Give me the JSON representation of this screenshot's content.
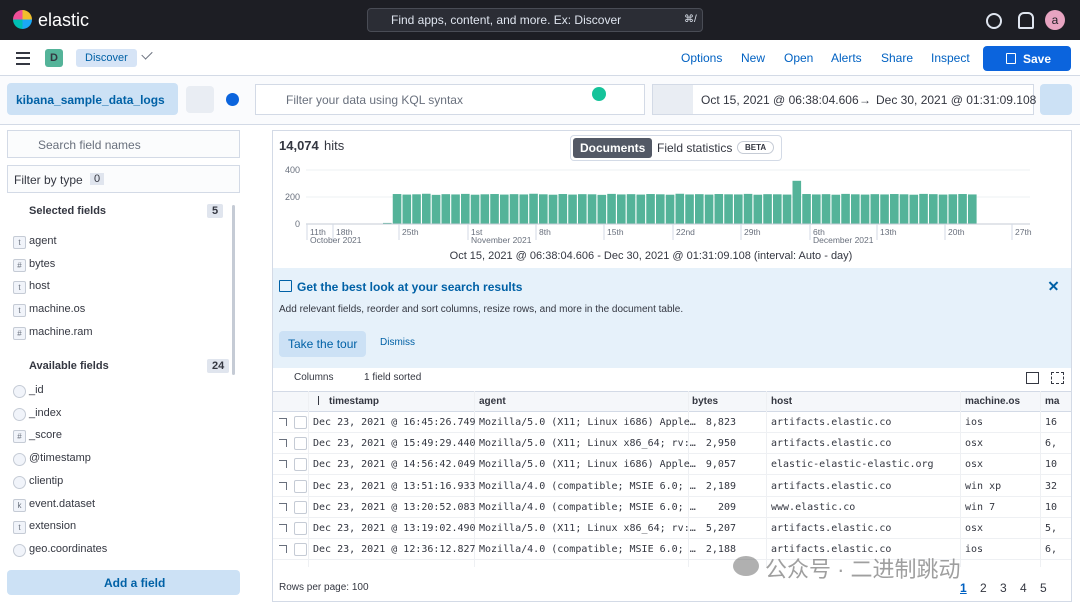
{
  "topbar": {
    "brand": "elastic",
    "search": "Find apps, content, and more. Ex: Discover",
    "shortcut": "⌘/",
    "avatar": "a"
  },
  "nav": {
    "badge": "D",
    "app": "Discover",
    "links": [
      "Options",
      "New",
      "Open",
      "Alerts",
      "Share",
      "Inspect"
    ],
    "save": "Save"
  },
  "query": {
    "data_view": "kibana_sample_data_logs",
    "placeholder": "Filter your data using KQL syntax",
    "date_start": "Oct 15, 2021 @ 06:38:04.606",
    "arrow": "→",
    "date_end": "Dec 30, 2021 @ 01:31:09.108"
  },
  "sidebar": {
    "search": "Search field names",
    "filter": "Filter by type",
    "filter_count": "0",
    "selected_title": "Selected fields",
    "selected_count": "5",
    "selected": [
      {
        "icon": "t",
        "name": "agent"
      },
      {
        "icon": "#",
        "name": "bytes"
      },
      {
        "icon": "t",
        "name": "host"
      },
      {
        "icon": "t",
        "name": "machine.os"
      },
      {
        "icon": "#",
        "name": "machine.ram"
      }
    ],
    "available_title": "Available fields",
    "available_count": "24",
    "available": [
      {
        "name": "_id"
      },
      {
        "name": "_index"
      },
      {
        "icon": "#",
        "name": "_score"
      },
      {
        "name": "@timestamp"
      },
      {
        "name": "clientip"
      },
      {
        "icon": "k",
        "name": "event.dataset"
      },
      {
        "icon": "t",
        "name": "extension"
      },
      {
        "name": "geo.coordinates"
      }
    ],
    "add_field": "Add a field"
  },
  "main": {
    "hits": "14,074",
    "hits_label": "hits",
    "tab_documents": "Documents",
    "tab_stats": "Field statistics",
    "beta": "BETA",
    "caption": "Oct 15, 2021 @ 06:38:04.606 - Dec 30, 2021 @ 01:31:09.108 (interval: Auto - day)",
    "callout": {
      "title": "Get the best look at your search results",
      "text": "Add relevant fields, reorder and sort columns, resize rows, and more in the document table.",
      "tour": "Take the tour",
      "dismiss": "Dismiss"
    },
    "toolbar": {
      "columns": "Columns",
      "sorted": "1 field sorted"
    },
    "table": {
      "columns": [
        "timestamp",
        "agent",
        "bytes",
        "host",
        "machine.os",
        "ma"
      ],
      "rows": [
        [
          "Dec 23, 2021 @ 16:45:26.749",
          "Mozilla/5.0 (X11; Linux i686) Apple…",
          "8,823",
          "artifacts.elastic.co",
          "ios",
          "16"
        ],
        [
          "Dec 23, 2021 @ 15:49:29.440",
          "Mozilla/5.0 (X11; Linux x86_64; rv:…",
          "2,950",
          "artifacts.elastic.co",
          "osx",
          "6,"
        ],
        [
          "Dec 23, 2021 @ 14:56:42.049",
          "Mozilla/5.0 (X11; Linux i686) Apple…",
          "9,057",
          "elastic-elastic-elastic.org",
          "osx",
          "10"
        ],
        [
          "Dec 23, 2021 @ 13:51:16.933",
          "Mozilla/4.0 (compatible; MSIE 6.0; …",
          "2,189",
          "artifacts.elastic.co",
          "win xp",
          "32"
        ],
        [
          "Dec 23, 2021 @ 13:20:52.083",
          "Mozilla/4.0 (compatible; MSIE 6.0; …",
          "209",
          "www.elastic.co",
          "win 7",
          "10"
        ],
        [
          "Dec 23, 2021 @ 13:19:02.490",
          "Mozilla/5.0 (X11; Linux x86_64; rv:…",
          "5,207",
          "artifacts.elastic.co",
          "osx",
          "5,"
        ],
        [
          "Dec 23, 2021 @ 12:36:12.827",
          "Mozilla/4.0 (compatible; MSIE 6.0; …",
          "2,188",
          "artifacts.elastic.co",
          "ios",
          "6,"
        ]
      ]
    },
    "footer": {
      "rows_per_page": "Rows per page: 100",
      "pages": [
        "1",
        "2",
        "3",
        "4",
        "5"
      ]
    }
  },
  "watermark": "公众号 · 二进制跳动",
  "chart_data": {
    "type": "bar",
    "color": "#54b399",
    "ylim": [
      0,
      400
    ],
    "yticks": [
      0,
      200,
      400
    ],
    "x_labels": [
      {
        "day": "11th",
        "month": "October 2021"
      },
      {
        "day": "18th"
      },
      {
        "day": "25th"
      },
      {
        "day": "1st",
        "month": "November 2021"
      },
      {
        "day": "8th"
      },
      {
        "day": "15th"
      },
      {
        "day": "22nd"
      },
      {
        "day": "29th"
      },
      {
        "day": "6th",
        "month": "December 2021"
      },
      {
        "day": "13th"
      },
      {
        "day": "20th"
      },
      {
        "day": "27th"
      }
    ],
    "values": [
      8,
      222,
      218,
      220,
      224,
      216,
      221,
      219,
      223,
      217,
      220,
      222,
      218,
      221,
      219,
      224,
      220,
      217,
      222,
      218,
      221,
      220,
      216,
      223,
      219,
      221,
      218,
      222,
      220,
      217,
      224,
      219,
      221,
      218,
      222,
      220,
      219,
      223,
      217,
      221,
      220,
      218,
      320,
      222,
      219,
      221,
      217,
      223,
      220,
      218,
      221,
      219,
      222,
      220,
      217,
      223,
      221,
      218,
      220,
      222,
      219
    ]
  }
}
